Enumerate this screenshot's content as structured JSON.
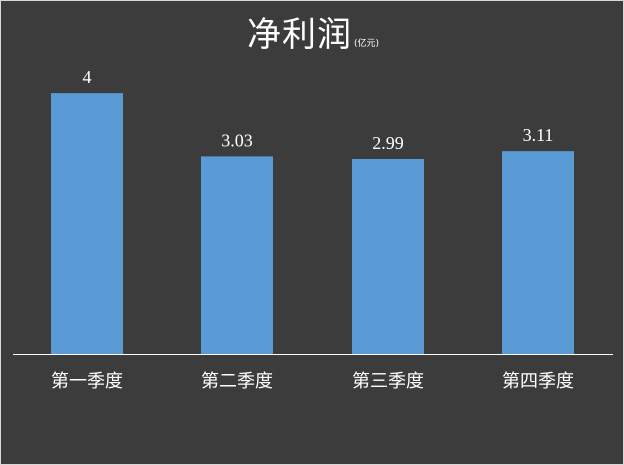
{
  "chart_data": {
    "type": "bar",
    "title": "净利润",
    "unit": "(亿元)",
    "categories": [
      "第一季度",
      "第二季度",
      "第三季度",
      "第四季度"
    ],
    "values": [
      4,
      3.03,
      2.99,
      3.11
    ],
    "value_labels": [
      "4",
      "3.03",
      "2.99",
      "3.11"
    ],
    "ylim": [
      0,
      4.6
    ],
    "grid": false,
    "legend": "none",
    "colors": {
      "bar": "#5b9bd5",
      "background": "#3c3c3c",
      "text": "#ffffff",
      "axis": "#ffffff"
    }
  }
}
